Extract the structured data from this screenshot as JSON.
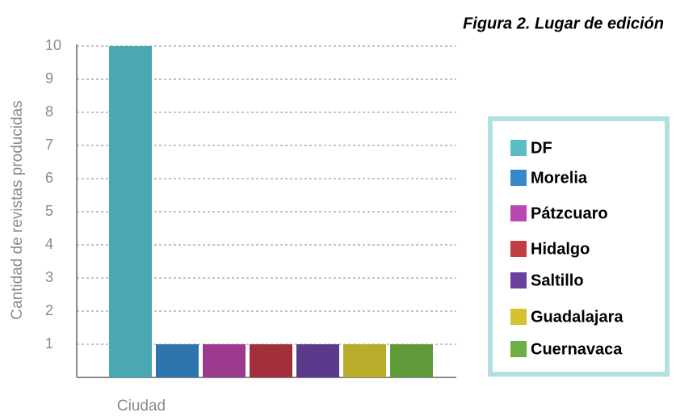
{
  "chart_data": {
    "type": "bar",
    "title": "Figura 2. Lugar de edición",
    "y_label": "Cantidad de revistas producidas",
    "x_label": "Ciudad",
    "categories": [
      "DF",
      "Morelia",
      "Pátzcuaro",
      "Hidalgo",
      "Saltillo",
      "Guadalajara",
      "Cuernavaca"
    ],
    "values": [
      10,
      1,
      1,
      1,
      1,
      1,
      1
    ],
    "colors": [
      "#4aa8b3",
      "#2e75b0",
      "#9b3a8e",
      "#a1303a",
      "#5b3a8c",
      "#b8ac2a",
      "#619a3a"
    ],
    "legend_colors": [
      "#5bbcc6",
      "#3a87c8",
      "#b847b0",
      "#c23b45",
      "#6a3f9e",
      "#d4c32d",
      "#6caf45"
    ],
    "ylim": [
      0,
      10
    ],
    "yticks": [
      1,
      2,
      3,
      4,
      5,
      6,
      7,
      8,
      9,
      10
    ],
    "grid": true,
    "legend": "right"
  }
}
